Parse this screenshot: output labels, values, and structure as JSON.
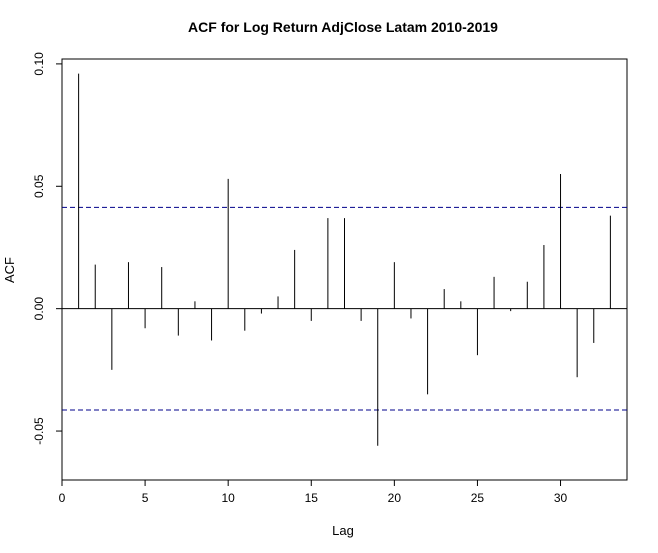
{
  "chart_data": {
    "type": "bar",
    "title": "ACF for Log Return AdjClose Latam 2010-2019",
    "xlabel": "Lag",
    "ylabel": "ACF",
    "xlim": [
      0,
      34
    ],
    "ylim": [
      -0.07,
      0.102
    ],
    "x_ticks": [
      0,
      5,
      10,
      15,
      20,
      25,
      30
    ],
    "x_tick_labels": [
      "0",
      "5",
      "10",
      "15",
      "20",
      "25",
      "30"
    ],
    "y_ticks": [
      -0.05,
      0.0,
      0.05,
      0.1
    ],
    "y_tick_labels": [
      "-0.05",
      "0.00",
      "0.05",
      "0.10"
    ],
    "confidence_bound": 0.0414,
    "lags": [
      1,
      2,
      3,
      4,
      5,
      6,
      7,
      8,
      9,
      10,
      11,
      12,
      13,
      14,
      15,
      16,
      17,
      18,
      19,
      20,
      21,
      22,
      23,
      24,
      25,
      26,
      27,
      28,
      29,
      30,
      31,
      32,
      33
    ],
    "values": [
      0.096,
      0.018,
      -0.025,
      0.019,
      -0.008,
      0.017,
      -0.011,
      0.003,
      -0.013,
      0.053,
      -0.009,
      -0.002,
      0.005,
      0.024,
      -0.005,
      0.037,
      0.037,
      -0.005,
      -0.056,
      0.019,
      -0.004,
      -0.035,
      0.008,
      0.003,
      -0.019,
      0.013,
      -0.001,
      0.011,
      0.026,
      0.055,
      -0.028,
      -0.014,
      0.038
    ],
    "colors": {
      "bars": "#000000",
      "bounds": "#00008B",
      "zero_line": "#000000"
    }
  }
}
